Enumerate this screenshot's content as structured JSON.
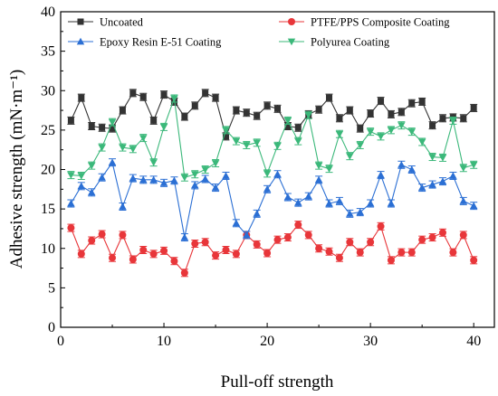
{
  "chart_data": {
    "type": "line",
    "xlabel": "Pull-off strength",
    "ylabel": "Adhesive strength (mN·m⁻¹)",
    "xlim": [
      0,
      42
    ],
    "ylim": [
      0,
      40
    ],
    "xticks": [
      0,
      10,
      20,
      30,
      40
    ],
    "yticks": [
      0,
      5,
      10,
      15,
      20,
      25,
      30,
      35,
      40
    ],
    "legend": "top",
    "grid": false,
    "x": [
      1,
      2,
      3,
      4,
      5,
      6,
      7,
      8,
      9,
      10,
      11,
      12,
      13,
      14,
      15,
      16,
      17,
      18,
      19,
      20,
      21,
      22,
      23,
      24,
      25,
      26,
      27,
      28,
      29,
      30,
      31,
      32,
      33,
      34,
      35,
      36,
      37,
      38,
      39,
      40
    ],
    "series": [
      {
        "name": "Uncoated",
        "color": "#333333",
        "marker": "square",
        "values": [
          26.2,
          29.1,
          25.5,
          25.3,
          25.2,
          27.5,
          29.7,
          29.2,
          26.2,
          29.5,
          28.6,
          26.7,
          28.1,
          29.7,
          29.1,
          24.2,
          27.5,
          27.2,
          26.8,
          28.1,
          27.7,
          25.5,
          25.3,
          27.0,
          27.6,
          29.1,
          26.5,
          27.5,
          25.2,
          27.1,
          28.7,
          27.0,
          27.3,
          28.4,
          28.6,
          25.6,
          26.5,
          26.6,
          26.5,
          27.8
        ]
      },
      {
        "name": "PTFE/PPS Composite Coating",
        "color": "#e8363a",
        "marker": "circle",
        "values": [
          12.6,
          9.3,
          11.0,
          11.8,
          8.8,
          11.7,
          8.6,
          9.8,
          9.3,
          9.7,
          8.4,
          6.9,
          10.6,
          10.8,
          9.1,
          9.8,
          9.3,
          11.7,
          10.5,
          9.4,
          11.1,
          11.4,
          13.0,
          11.7,
          10.0,
          9.6,
          8.8,
          10.8,
          9.5,
          10.8,
          12.8,
          8.5,
          9.5,
          9.5,
          11.1,
          11.4,
          12.0,
          9.5,
          11.7,
          8.5
        ]
      },
      {
        "name": "Epoxy Resin E-51 Coating",
        "color": "#2b6fd4",
        "marker": "triangle-up",
        "values": [
          15.7,
          17.9,
          17.1,
          19.0,
          20.9,
          15.3,
          18.9,
          18.7,
          18.7,
          18.3,
          18.6,
          11.4,
          18.0,
          18.8,
          17.7,
          19.2,
          13.2,
          11.7,
          14.4,
          17.5,
          19.4,
          16.5,
          15.8,
          16.6,
          18.7,
          15.7,
          16.0,
          14.4,
          14.6,
          15.7,
          19.3,
          15.7,
          20.6,
          20.0,
          17.7,
          18.1,
          18.5,
          19.2,
          16.0,
          15.4
        ]
      },
      {
        "name": "Polyurea Coating",
        "color": "#3bb87a",
        "marker": "triangle-down",
        "values": [
          19.3,
          19.2,
          20.5,
          22.8,
          26.0,
          22.8,
          22.6,
          24.0,
          20.9,
          25.4,
          29.0,
          19.0,
          19.4,
          20.0,
          20.8,
          25.0,
          23.6,
          23.1,
          23.4,
          19.5,
          23.0,
          26.2,
          23.6,
          26.9,
          20.5,
          20.1,
          24.5,
          21.7,
          23.1,
          24.8,
          24.2,
          25.0,
          25.6,
          24.8,
          23.5,
          21.6,
          21.5,
          26.2,
          20.2,
          20.6
        ]
      }
    ]
  }
}
